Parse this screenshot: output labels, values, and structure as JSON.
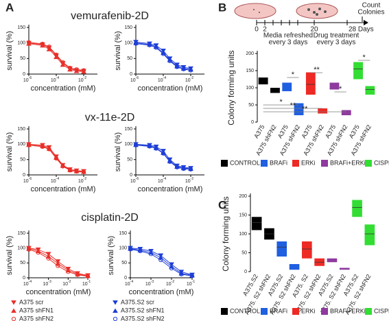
{
  "panel_labels": [
    "A",
    "B",
    "C"
  ],
  "timeline": {
    "ticks": [
      "0",
      "2",
      "20",
      "28 Days"
    ],
    "media": [
      "Media refreshed",
      "every 3 days"
    ],
    "drug": [
      "Drug treatment",
      "every 3 days"
    ],
    "count": [
      "Count",
      "Colonies"
    ]
  },
  "chart_data": [
    {
      "type": "line",
      "title": "vemurafenib-2D",
      "x_label": "concentration (mM)",
      "y_label": "survival (%)",
      "log_x": true,
      "xlim": [
        1e-06,
        0.1
      ],
      "xticks": [
        {
          "value": 1e-06,
          "label": "10",
          "power": "-6"
        },
        {
          "value": 0.0001,
          "label": "10",
          "power": "-4"
        },
        {
          "value": 0.01,
          "label": "10",
          "power": "-2"
        }
      ],
      "ylim": [
        0,
        150
      ],
      "yticks": [
        0,
        50,
        100,
        150
      ],
      "x": [
        1e-06,
        1e-05,
        3e-05,
        0.0001,
        0.0003,
        0.001,
        0.003,
        0.01
      ],
      "series": [
        {
          "color": "#e8302a",
          "marker": "triangle-down",
          "values": [
            100,
            95,
            85,
            60,
            35,
            18,
            12,
            10
          ]
        },
        {
          "color": "#e8302a",
          "marker": "triangle-up",
          "values": [
            98,
            92,
            80,
            55,
            30,
            15,
            10,
            8
          ]
        },
        {
          "color": "#e8302a",
          "marker": "circle",
          "values": [
            102,
            97,
            88,
            62,
            38,
            20,
            15,
            12
          ]
        }
      ]
    },
    {
      "type": "line",
      "x_label": "concentration (mM)",
      "y_label": "survival (%)",
      "log_x": true,
      "xlim": [
        1e-06,
        0.1
      ],
      "xticks": [
        {
          "value": 1e-06,
          "label": "10",
          "power": "-6"
        },
        {
          "value": 0.0001,
          "label": "10",
          "power": "-4"
        },
        {
          "value": 0.01,
          "label": "10",
          "power": "-2"
        }
      ],
      "ylim": [
        0,
        150
      ],
      "yticks": [
        0,
        50,
        100,
        150
      ],
      "x": [
        1e-06,
        1e-05,
        3e-05,
        0.0001,
        0.0003,
        0.001,
        0.003,
        0.01
      ],
      "series": [
        {
          "color": "#1f3fd6",
          "marker": "triangle-down",
          "values": [
            103,
            98,
            92,
            75,
            50,
            30,
            22,
            18
          ]
        },
        {
          "color": "#1f3fd6",
          "marker": "triangle-up",
          "values": [
            100,
            95,
            88,
            68,
            45,
            25,
            18,
            15
          ]
        },
        {
          "color": "#1f3fd6",
          "marker": "circle",
          "values": [
            98,
            93,
            85,
            65,
            42,
            23,
            16,
            12
          ]
        }
      ]
    },
    {
      "type": "line",
      "title": "vx-11e-2D",
      "x_label": "concentration (mM)",
      "y_label": "survival (%)",
      "log_x": true,
      "xlim": [
        1e-06,
        0.1
      ],
      "xticks": [
        {
          "value": 1e-06,
          "label": "10",
          "power": "-6"
        },
        {
          "value": 0.0001,
          "label": "10",
          "power": "-4"
        },
        {
          "value": 0.01,
          "label": "10",
          "power": "-2"
        }
      ],
      "ylim": [
        0,
        150
      ],
      "yticks": [
        0,
        50,
        100,
        150
      ],
      "x": [
        1e-06,
        1e-05,
        3e-05,
        0.0001,
        0.0003,
        0.001,
        0.003,
        0.01
      ],
      "series": [
        {
          "color": "#e8302a",
          "marker": "triangle-down",
          "values": [
            100,
            97,
            90,
            60,
            32,
            18,
            14,
            12
          ]
        },
        {
          "color": "#e8302a",
          "marker": "triangle-up",
          "values": [
            98,
            94,
            86,
            56,
            30,
            16,
            12,
            10
          ]
        },
        {
          "color": "#e8302a",
          "marker": "circle",
          "values": [
            97,
            92,
            84,
            54,
            28,
            15,
            11,
            9
          ]
        }
      ]
    },
    {
      "type": "line",
      "x_label": "concentration (mM)",
      "y_label": "survival (%)",
      "log_x": true,
      "xlim": [
        1e-06,
        0.1
      ],
      "xticks": [
        {
          "value": 1e-06,
          "label": "10",
          "power": "-6"
        },
        {
          "value": 0.0001,
          "label": "10",
          "power": "-4"
        },
        {
          "value": 0.01,
          "label": "10",
          "power": "-2"
        }
      ],
      "ylim": [
        0,
        150
      ],
      "yticks": [
        0,
        50,
        100,
        150
      ],
      "x": [
        1e-06,
        1e-05,
        3e-05,
        0.0001,
        0.0003,
        0.001,
        0.003,
        0.01
      ],
      "series": [
        {
          "color": "#1f3fd6",
          "marker": "triangle-down",
          "values": [
            100,
            97,
            92,
            78,
            50,
            30,
            25,
            22
          ]
        },
        {
          "color": "#1f3fd6",
          "marker": "triangle-up",
          "values": [
            98,
            95,
            88,
            72,
            45,
            27,
            22,
            20
          ]
        },
        {
          "color": "#1f3fd6",
          "marker": "circle",
          "values": [
            97,
            93,
            86,
            70,
            43,
            25,
            20,
            18
          ]
        }
      ]
    },
    {
      "type": "line",
      "title": "cisplatin-2D",
      "x_label": "concentration (mM)",
      "y_label": "survival (%)",
      "log_x": true,
      "xlim": [
        0.0001,
        0.1
      ],
      "xticks": [
        {
          "value": 0.0001,
          "label": "10",
          "power": "-4"
        },
        {
          "value": 0.001,
          "label": "10",
          "power": "-3"
        },
        {
          "value": 0.01,
          "label": "10",
          "power": "-2"
        },
        {
          "value": 0.1,
          "label": "10",
          "power": "-1"
        }
      ],
      "ylim": [
        0,
        150
      ],
      "yticks": [
        0,
        50,
        100,
        150
      ],
      "x": [
        0.0001,
        0.0003,
        0.001,
        0.003,
        0.01,
        0.03,
        0.1
      ],
      "series": [
        {
          "name": "A375 scr",
          "color": "#e8302a",
          "marker": "triangle-down",
          "values": [
            100,
            95,
            80,
            55,
            30,
            15,
            8
          ]
        },
        {
          "name": "A375 shFN1",
          "color": "#e8302a",
          "marker": "triangle-up",
          "values": [
            98,
            90,
            72,
            48,
            25,
            12,
            6
          ]
        },
        {
          "name": "A375 shFN2",
          "color": "#e8302a",
          "marker": "circle",
          "values": [
            95,
            85,
            65,
            40,
            20,
            10,
            5
          ]
        }
      ]
    },
    {
      "type": "line",
      "x_label": "concentration (mM)",
      "y_label": "survival (%)",
      "log_x": true,
      "xlim": [
        0.0001,
        0.1
      ],
      "xticks": [
        {
          "value": 0.0001,
          "label": "10",
          "power": "-4"
        },
        {
          "value": 0.001,
          "label": "10",
          "power": "-3"
        },
        {
          "value": 0.01,
          "label": "10",
          "power": "-2"
        },
        {
          "value": 0.1,
          "label": "10",
          "power": "-1"
        }
      ],
      "ylim": [
        0,
        150
      ],
      "yticks": [
        0,
        50,
        100,
        150
      ],
      "x": [
        0.0001,
        0.0003,
        0.001,
        0.003,
        0.01,
        0.03,
        0.1
      ],
      "series": [
        {
          "name": "A375.S2 scr",
          "color": "#1f3fd6",
          "marker": "triangle-down",
          "values": [
            100,
            97,
            90,
            75,
            45,
            20,
            10
          ]
        },
        {
          "name": "A375.S2 shFN1",
          "color": "#1f3fd6",
          "marker": "triangle-up",
          "values": [
            98,
            93,
            85,
            68,
            38,
            15,
            8
          ]
        },
        {
          "name": "A375.S2 shFN2",
          "color": "#1f3fd6",
          "marker": "circle",
          "values": [
            96,
            90,
            80,
            60,
            32,
            12,
            6
          ]
        }
      ]
    },
    {
      "type": "floating_bar",
      "y_label": "Colony forming units",
      "ylim": [
        0,
        200
      ],
      "yticks": [
        0,
        50,
        100,
        150,
        200
      ],
      "categories": [
        "A375",
        "A375 shFN2",
        "A375",
        "A375 shFN2",
        "A375",
        "A375 shFN2",
        "A375",
        "A375 shFN2",
        "A375",
        "A375 shFN2"
      ],
      "colors": [
        "#000000",
        "#000000",
        "#1f5fe0",
        "#1f5fe0",
        "#ee2a24",
        "#ee2a24",
        "#8e3a9e",
        "#8e3a9e",
        "#33dd33",
        "#33dd33"
      ],
      "low": [
        110,
        85,
        90,
        20,
        80,
        25,
        95,
        20,
        125,
        80
      ],
      "high": [
        130,
        100,
        115,
        55,
        145,
        40,
        115,
        35,
        175,
        105
      ],
      "mid": [
        null,
        null,
        null,
        null,
        110,
        null,
        null,
        null,
        155,
        95
      ],
      "annotations": [
        "*",
        "*",
        "**",
        "*",
        "*",
        "**",
        "**"
      ],
      "legend": [
        {
          "name": "CONTROL",
          "color": "#000000"
        },
        {
          "name": "BRAFi",
          "color": "#1f5fe0"
        },
        {
          "name": "ERKi",
          "color": "#ee2a24"
        },
        {
          "name": "BRAFi+ERKi",
          "color": "#8e3a9e"
        },
        {
          "name": "CISPLATIN",
          "color": "#33dd33"
        }
      ]
    },
    {
      "type": "floating_bar",
      "y_label": "Colony forming units",
      "ylim": [
        0,
        200
      ],
      "yticks": [
        0,
        50,
        100,
        150,
        200
      ],
      "categories": [
        "A375.S2",
        "A375. S2 shFN2",
        "A375.S2",
        "A375. S2 shFN2",
        "A375. S2",
        "A375. S2 shFN2",
        "A375.S2",
        "A375. S2 shFN2",
        "A375.S2",
        "A375. S2 shFN2"
      ],
      "colors": [
        "#000000",
        "#000000",
        "#1f5fe0",
        "#1f5fe0",
        "#ee2a24",
        "#ee2a24",
        "#8e3a9e",
        "#8e3a9e",
        "#33dd33",
        "#33dd33"
      ],
      "low": [
        110,
        85,
        40,
        5,
        35,
        15,
        25,
        5,
        145,
        70
      ],
      "high": [
        145,
        115,
        80,
        20,
        80,
        35,
        35,
        10,
        190,
        125
      ],
      "mid": [
        130,
        100,
        65,
        null,
        60,
        25,
        null,
        null,
        170,
        100
      ],
      "legend": [
        {
          "name": "CONTROL",
          "color": "#000000"
        },
        {
          "name": "BRAFi",
          "color": "#1f5fe0"
        },
        {
          "name": "ERKi",
          "color": "#ee2a24"
        },
        {
          "name": "BRAFi+ERKi",
          "color": "#8e3a9e"
        },
        {
          "name": "CISPLATIN",
          "color": "#33dd33"
        }
      ]
    }
  ]
}
